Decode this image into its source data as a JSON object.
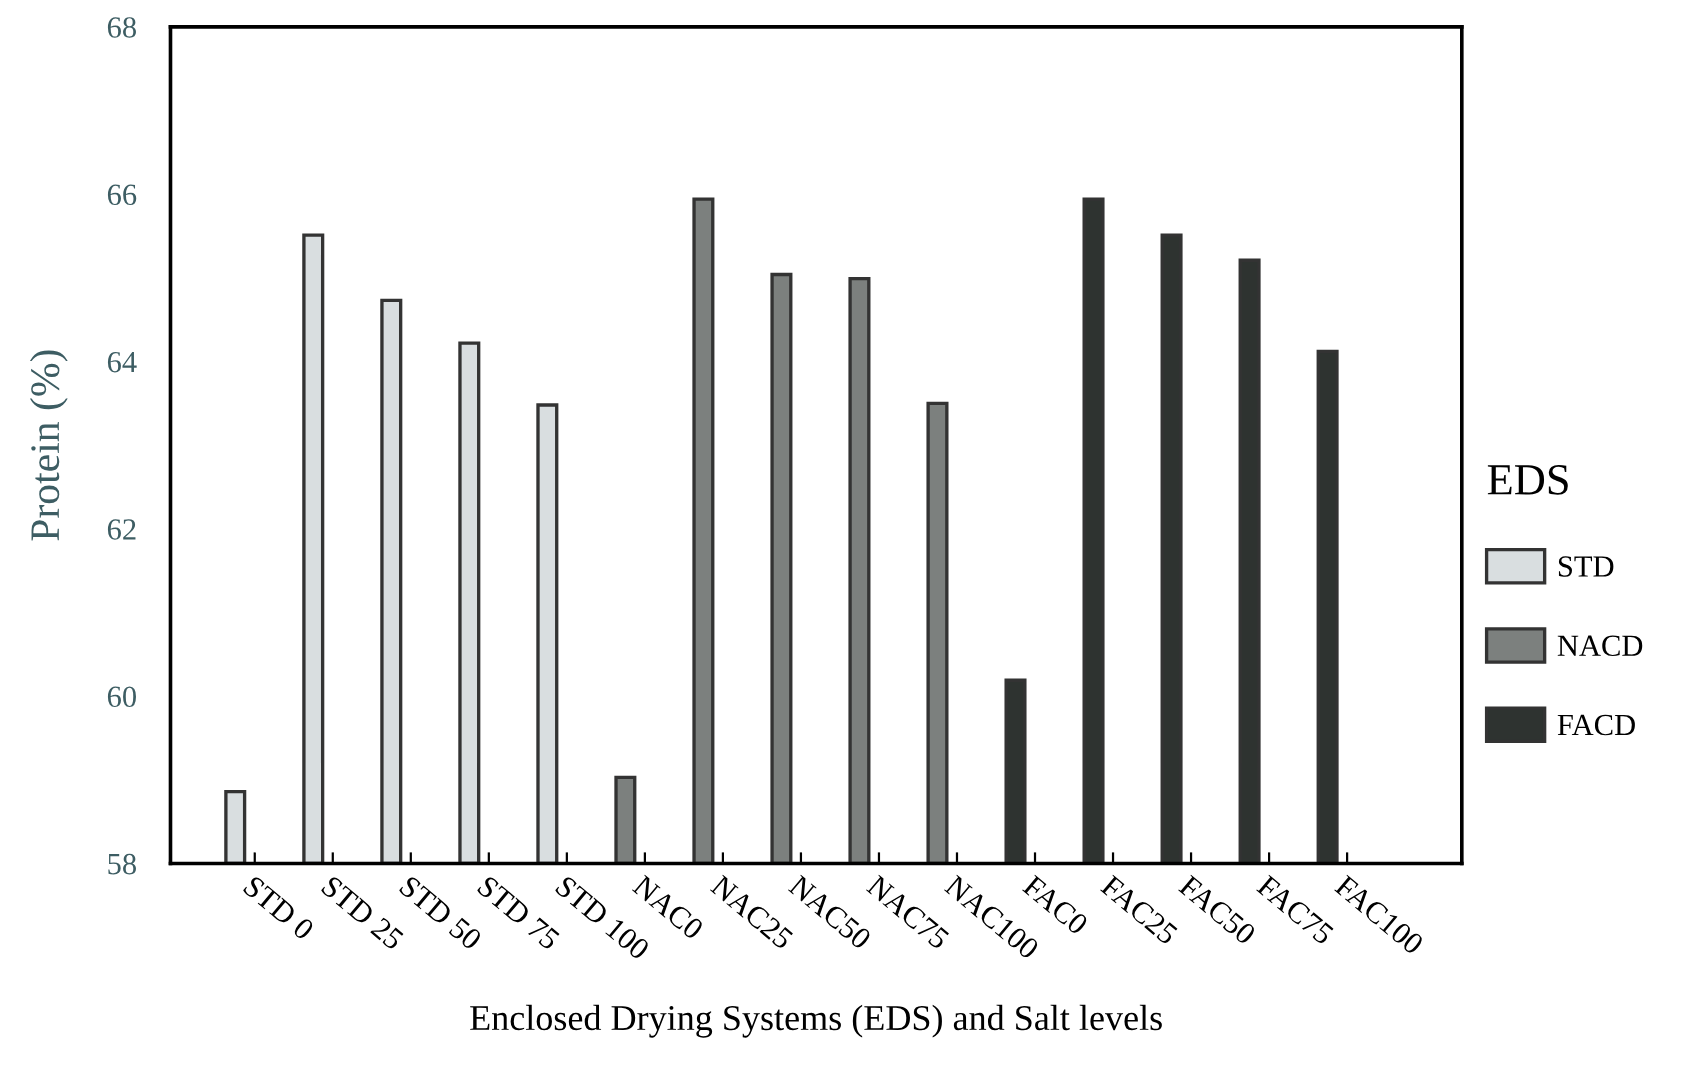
{
  "chart_data": {
    "type": "bar",
    "xlabel": "Enclosed Drying Systems (EDS) and Salt levels",
    "ylabel": "Protein (%)",
    "legend_title": "EDS",
    "categories": [
      "STD 0",
      "STD 25",
      "STD 50",
      "STD 75",
      "STD 100",
      "NAC0",
      "NAC25",
      "NAC50",
      "NAC75",
      "NAC100",
      "FAC0",
      "FAC25",
      "FAC50",
      "FAC75",
      "FAC100"
    ],
    "series": [
      {
        "name": "STD",
        "color": "#d9dee0",
        "values": [
          58.86,
          65.51,
          64.73,
          64.22,
          63.48,
          null,
          null,
          null,
          null,
          null,
          null,
          null,
          null,
          null,
          null
        ]
      },
      {
        "name": "NACD",
        "color": "#7c807e",
        "values": [
          null,
          null,
          null,
          null,
          null,
          59.03,
          65.94,
          65.04,
          64.99,
          63.5,
          null,
          null,
          null,
          null,
          null
        ]
      },
      {
        "name": "FACD",
        "color": "#2e3330",
        "values": [
          null,
          null,
          null,
          null,
          null,
          null,
          null,
          null,
          null,
          null,
          60.19,
          65.94,
          65.51,
          65.21,
          64.12
        ]
      }
    ],
    "ylim": [
      58,
      68
    ],
    "yticks": [
      58,
      60,
      62,
      64,
      66,
      68
    ],
    "grid": false,
    "legend": "right"
  }
}
